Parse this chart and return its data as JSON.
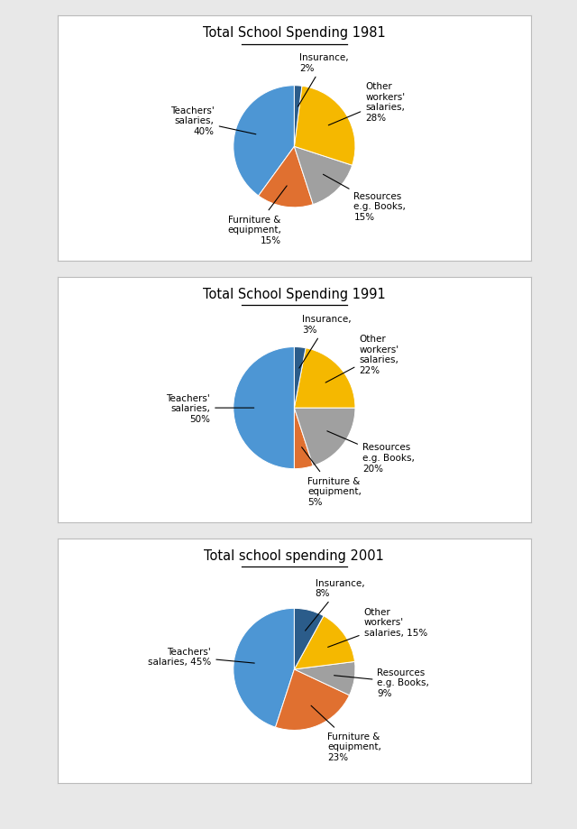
{
  "charts": [
    {
      "title": "Total School Spending 1981",
      "slices": [
        {
          "label": "Teachers'\nsalaries,\n40%",
          "value": 40,
          "color": "#4D96D4"
        },
        {
          "label": "Furniture &\nequipment,\n15%",
          "value": 15,
          "color": "#E07030"
        },
        {
          "label": "Resources\ne.g. Books,\n15%",
          "value": 15,
          "color": "#A0A0A0"
        },
        {
          "label": "Other\nworkers'\nsalaries,\n28%",
          "value": 28,
          "color": "#F5B800"
        },
        {
          "label": "Insurance,\n2%",
          "value": 2,
          "color": "#2B5C8A"
        }
      ],
      "startangle": 90
    },
    {
      "title": "Total School Spending 1991",
      "slices": [
        {
          "label": "Teachers'\nsalaries,\n50%",
          "value": 50,
          "color": "#4D96D4"
        },
        {
          "label": "Furniture &\nequipment,\n5%",
          "value": 5,
          "color": "#E07030"
        },
        {
          "label": "Resources\ne.g. Books,\n20%",
          "value": 20,
          "color": "#A0A0A0"
        },
        {
          "label": "Other\nworkers'\nsalaries,\n22%",
          "value": 22,
          "color": "#F5B800"
        },
        {
          "label": "Insurance,\n3%",
          "value": 3,
          "color": "#2B5C8A"
        }
      ],
      "startangle": 90
    },
    {
      "title": "Total school spending 2001",
      "slices": [
        {
          "label": "Teachers'\nsalaries, 45%",
          "value": 45,
          "color": "#4D96D4"
        },
        {
          "label": "Furniture &\nequipment,\n23%",
          "value": 23,
          "color": "#E07030"
        },
        {
          "label": "Resources\ne.g. Books,\n9%",
          "value": 9,
          "color": "#A0A0A0"
        },
        {
          "label": "Other\nworkers'\nsalaries, 15%",
          "value": 15,
          "color": "#F5B800"
        },
        {
          "label": "Insurance,\n8%",
          "value": 8,
          "color": "#2B5C8A"
        }
      ],
      "startangle": 90
    }
  ],
  "fig_width": 6.4,
  "fig_height": 9.2,
  "background_color": "#E8E8E8",
  "panel_color": "#FFFFFF"
}
